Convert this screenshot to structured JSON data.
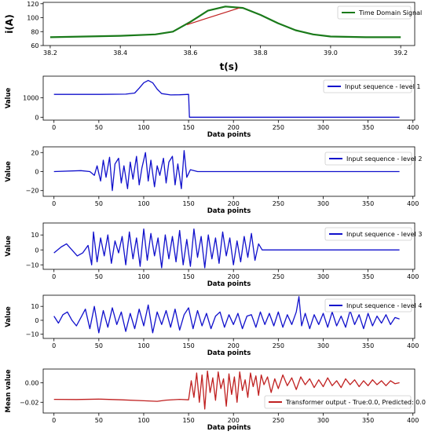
{
  "chart_data": [
    {
      "type": "line",
      "xlabel": "t(s)",
      "ylabel": "i(A)",
      "xlim": [
        38.18,
        39.24
      ],
      "ylim": [
        60,
        122
      ],
      "xticks": [
        38.2,
        38.4,
        38.6,
        38.8,
        39.0,
        39.2
      ],
      "xtick_labels": [
        "38.2",
        "38.4",
        "38.6",
        "38.8",
        "39.0",
        "39.2"
      ],
      "yticks": [
        60,
        80,
        100,
        120
      ],
      "ytick_labels": [
        "60",
        "80",
        "100",
        "120"
      ],
      "grid": false,
      "legend": "top-right",
      "series": [
        {
          "name": "Time Domain Signal",
          "color": "#1a7a1a",
          "x": [
            38.2,
            38.3,
            38.4,
            38.5,
            38.55,
            38.6,
            38.65,
            38.7,
            38.75,
            38.8,
            38.85,
            38.9,
            38.95,
            39.0,
            39.1,
            39.2
          ],
          "y": [
            72,
            73,
            74,
            76,
            80,
            94,
            110,
            116,
            114,
            104,
            92,
            82,
            76,
            73,
            72,
            72
          ]
        }
      ],
      "overlay": {
        "name": "",
        "color": "#c02020",
        "x": [
          38.59,
          38.74
        ],
        "y": [
          90,
          114
        ]
      }
    },
    {
      "type": "line",
      "xlabel": "Data points",
      "ylabel": "Value",
      "xlim": [
        -12,
        402
      ],
      "ylim": [
        -150,
        2120
      ],
      "xticks": [
        0,
        50,
        100,
        150,
        200,
        250,
        300,
        350,
        400
      ],
      "xtick_labels": [
        "0",
        "50",
        "100",
        "150",
        "200",
        "250",
        "300",
        "350",
        "400"
      ],
      "yticks": [
        0,
        1000
      ],
      "ytick_labels": [
        "0",
        "1000"
      ],
      "grid": false,
      "legend": "top-right",
      "series": [
        {
          "name": "Input sequence - level 1",
          "color": "#1010cc",
          "x": [
            0,
            50,
            80,
            90,
            95,
            100,
            105,
            110,
            115,
            120,
            130,
            140,
            150,
            151,
            155,
            385
          ],
          "y": [
            1180,
            1180,
            1190,
            1250,
            1500,
            1780,
            1900,
            1780,
            1450,
            1220,
            1150,
            1160,
            1180,
            0,
            0,
            0
          ]
        }
      ]
    },
    {
      "type": "line",
      "xlabel": "Data points",
      "ylabel": "Value",
      "xlim": [
        -12,
        402
      ],
      "ylim": [
        -26,
        26
      ],
      "xticks": [
        0,
        50,
        100,
        150,
        200,
        250,
        300,
        350,
        400
      ],
      "xtick_labels": [
        "0",
        "50",
        "100",
        "150",
        "200",
        "250",
        "300",
        "350",
        "400"
      ],
      "yticks": [
        -20,
        0,
        20
      ],
      "ytick_labels": [
        "−20",
        "0",
        "20"
      ],
      "grid": false,
      "legend": "top-right",
      "series": [
        {
          "name": "Input sequence - level 2",
          "color": "#1010cc",
          "x": [
            0,
            30,
            40,
            45,
            48,
            52,
            55,
            58,
            62,
            65,
            68,
            72,
            75,
            78,
            82,
            85,
            88,
            92,
            95,
            98,
            102,
            105,
            108,
            112,
            115,
            118,
            122,
            125,
            128,
            132,
            135,
            138,
            142,
            145,
            148,
            152,
            160,
            385
          ],
          "y": [
            0,
            1,
            0,
            -4,
            6,
            -10,
            12,
            -6,
            15,
            -20,
            8,
            14,
            -12,
            6,
            -18,
            10,
            -8,
            16,
            -14,
            4,
            20,
            -10,
            12,
            -16,
            6,
            -4,
            14,
            -12,
            10,
            16,
            -14,
            8,
            -18,
            22,
            -6,
            2,
            0,
            0
          ]
        }
      ]
    },
    {
      "type": "line",
      "xlabel": "Data points",
      "ylabel": "Value",
      "xlim": [
        -12,
        402
      ],
      "ylim": [
        -13,
        18
      ],
      "xticks": [
        0,
        50,
        100,
        150,
        200,
        250,
        300,
        350,
        400
      ],
      "xtick_labels": [
        "0",
        "50",
        "100",
        "150",
        "200",
        "250",
        "300",
        "350",
        "400"
      ],
      "yticks": [
        -10,
        0,
        10
      ],
      "ytick_labels": [
        "−10",
        "0",
        "10"
      ],
      "grid": false,
      "legend": "top-right",
      "series": [
        {
          "name": "Input sequence - level 3",
          "color": "#1010cc",
          "x": [
            0,
            8,
            14,
            20,
            26,
            32,
            38,
            42,
            44,
            48,
            52,
            56,
            60,
            64,
            68,
            72,
            76,
            80,
            84,
            88,
            92,
            96,
            100,
            104,
            108,
            112,
            116,
            120,
            124,
            128,
            132,
            136,
            140,
            144,
            148,
            152,
            156,
            160,
            164,
            168,
            172,
            176,
            180,
            184,
            188,
            192,
            196,
            200,
            204,
            208,
            212,
            216,
            220,
            224,
            228,
            232,
            240,
            385
          ],
          "y": [
            -2,
            2,
            4,
            0,
            -4,
            -2,
            3,
            -10,
            12,
            -8,
            8,
            -4,
            10,
            -9,
            6,
            -2,
            9,
            -10,
            12,
            -6,
            8,
            -11,
            14,
            -7,
            11,
            -4,
            8,
            -12,
            10,
            -6,
            9,
            -8,
            13,
            -10,
            7,
            -11,
            14,
            -5,
            9,
            -12,
            10,
            -6,
            8,
            -9,
            12,
            -4,
            8,
            -10,
            6,
            -8,
            9,
            -5,
            11,
            -7,
            4,
            0,
            0,
            0
          ]
        }
      ]
    },
    {
      "type": "line",
      "xlabel": "Data points",
      "ylabel": "Value",
      "xlim": [
        -12,
        402
      ],
      "ylim": [
        -13,
        18
      ],
      "xticks": [
        0,
        50,
        100,
        150,
        200,
        250,
        300,
        350,
        400
      ],
      "xtick_labels": [
        "0",
        "50",
        "100",
        "150",
        "200",
        "250",
        "300",
        "350",
        "400"
      ],
      "yticks": [
        -10,
        0,
        10
      ],
      "ytick_labels": [
        "−10",
        "0",
        "10"
      ],
      "grid": false,
      "legend": "top-right",
      "series": [
        {
          "name": "Input sequence - level 4",
          "color": "#1010cc",
          "x": [
            0,
            5,
            10,
            15,
            20,
            25,
            30,
            35,
            40,
            45,
            50,
            55,
            60,
            65,
            70,
            75,
            80,
            85,
            90,
            95,
            100,
            105,
            110,
            115,
            120,
            125,
            130,
            135,
            140,
            145,
            150,
            155,
            160,
            165,
            170,
            175,
            180,
            185,
            190,
            195,
            200,
            205,
            210,
            215,
            220,
            225,
            230,
            235,
            240,
            245,
            250,
            255,
            260,
            265,
            270,
            273,
            276,
            280,
            285,
            290,
            295,
            300,
            305,
            310,
            315,
            320,
            325,
            330,
            335,
            340,
            345,
            350,
            355,
            360,
            365,
            370,
            375,
            380,
            385
          ],
          "y": [
            3,
            -2,
            4,
            6,
            0,
            -4,
            2,
            8,
            -6,
            10,
            -9,
            7,
            -5,
            9,
            -3,
            6,
            -8,
            5,
            -6,
            8,
            -4,
            11,
            -9,
            6,
            -3,
            7,
            -5,
            8,
            -7,
            4,
            9,
            -6,
            7,
            -4,
            5,
            -6,
            3,
            6,
            -5,
            4,
            -3,
            5,
            -6,
            3,
            4,
            -5,
            6,
            -3,
            5,
            -4,
            6,
            -5,
            4,
            -3,
            6,
            17,
            -4,
            5,
            -6,
            4,
            -3,
            5,
            -5,
            6,
            -4,
            3,
            -5,
            7,
            -3,
            4,
            -6,
            5,
            -4,
            3,
            -2,
            4,
            -3,
            2,
            1
          ]
        }
      ]
    },
    {
      "type": "line",
      "xlabel": "Data points",
      "ylabel": "Mean value",
      "xlim": [
        -12,
        402
      ],
      "ylim": [
        -0.031,
        0.014
      ],
      "xticks": [
        0,
        50,
        100,
        150,
        200,
        250,
        300,
        350,
        400
      ],
      "xtick_labels": [
        "0",
        "50",
        "100",
        "150",
        "200",
        "250",
        "300",
        "350",
        "400"
      ],
      "yticks": [
        -0.02,
        0.0
      ],
      "ytick_labels": [
        "−0.02",
        "0.00"
      ],
      "grid": false,
      "legend": "lower-right",
      "series": [
        {
          "name": "Transformer output - True:0.0, Predicted: 0.0",
          "color": "#c02020",
          "x": [
            0,
            25,
            50,
            75,
            100,
            115,
            125,
            140,
            150,
            153,
            156,
            159,
            162,
            165,
            168,
            171,
            174,
            177,
            180,
            183,
            186,
            189,
            192,
            195,
            198,
            201,
            204,
            207,
            210,
            213,
            216,
            219,
            222,
            225,
            228,
            231,
            234,
            238,
            242,
            246,
            250,
            255,
            260,
            265,
            270,
            275,
            280,
            285,
            290,
            295,
            300,
            305,
            310,
            315,
            320,
            325,
            330,
            335,
            340,
            345,
            350,
            355,
            360,
            365,
            370,
            375,
            380,
            385
          ],
          "y": [
            -0.017,
            -0.0172,
            -0.0168,
            -0.0175,
            -0.0185,
            -0.019,
            -0.0178,
            -0.017,
            -0.0175,
            0.002,
            -0.015,
            0.01,
            -0.02,
            0.008,
            -0.027,
            0.012,
            -0.01,
            0.005,
            -0.018,
            0.011,
            -0.006,
            0.004,
            -0.024,
            0.009,
            -0.012,
            0.006,
            -0.02,
            0.011,
            -0.008,
            0.003,
            -0.015,
            0.01,
            -0.004,
            0.007,
            -0.013,
            0.008,
            -0.002,
            0.006,
            -0.01,
            0.004,
            -0.006,
            0.008,
            -0.003,
            0.005,
            -0.007,
            0.006,
            -0.002,
            0.004,
            -0.005,
            0.003,
            -0.004,
            0.005,
            -0.003,
            0.002,
            -0.005,
            0.004,
            -0.002,
            0.003,
            -0.004,
            0.002,
            -0.003,
            0.003,
            -0.002,
            0.002,
            -0.003,
            0.002,
            -0.001,
            0.0
          ]
        }
      ]
    }
  ]
}
